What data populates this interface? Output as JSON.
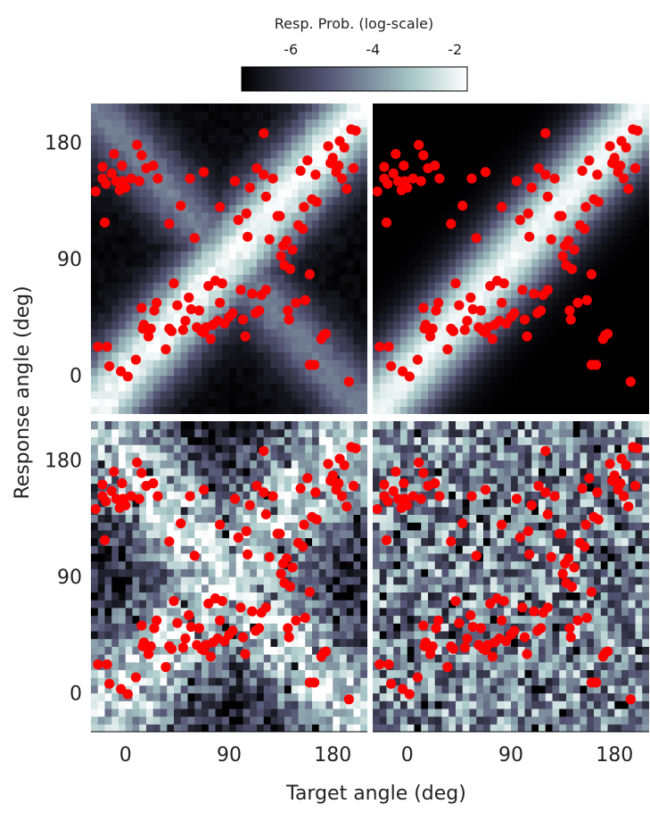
{
  "chart_data": {
    "type": "heatmap",
    "layout": "2x2 grid of heatmap panels with scatter overlay",
    "colormap": "bone (black to white)",
    "overlay_color": "#ff0000",
    "colorbar": {
      "title": "Resp. Prob. (log-scale)",
      "ticks": [
        -6,
        -4,
        -2
      ],
      "tick_labels": [
        "-6",
        "-4",
        "-2"
      ],
      "range": [
        -7.2,
        -1.7
      ],
      "scale": "log"
    },
    "xlabel": "Target angle (deg)",
    "ylabel": "Response angle (deg)",
    "xlim": [
      -30,
      210
    ],
    "ylim": [
      -30,
      210
    ],
    "xticks": [
      0,
      90,
      180
    ],
    "yticks": [
      0,
      90,
      180
    ],
    "xtick_labels": [
      "0",
      "90",
      "180"
    ],
    "ytick_labels": [
      "0",
      "90",
      "180"
    ],
    "heatmap_bins": 40,
    "panels": [
      {
        "position": "top-left",
        "background_model": "diagonal band plus weaker anti-diagonal band (smooth)"
      },
      {
        "position": "top-right",
        "background_model": "diagonal band only (smooth)"
      },
      {
        "position": "bottom-left",
        "background_model": "diagonal and anti-diagonal bands (noisy)"
      },
      {
        "position": "bottom-right",
        "background_model": "near-uniform (noisy)"
      }
    ],
    "points": [
      [
        -26,
        142
      ],
      [
        -24,
        22
      ],
      [
        -20,
        161
      ],
      [
        -20,
        152
      ],
      [
        -18,
        118
      ],
      [
        -17,
        148
      ],
      [
        -16,
        22
      ],
      [
        -14,
        7
      ],
      [
        -12,
        156
      ],
      [
        -10,
        171
      ],
      [
        -8,
        150
      ],
      [
        -5,
        143
      ],
      [
        -4,
        3
      ],
      [
        -3,
        162
      ],
      [
        -2,
        150
      ],
      [
        0,
        145
      ],
      [
        2,
        -1
      ],
      [
        5,
        152
      ],
      [
        9,
        12
      ],
      [
        10,
        178
      ],
      [
        12,
        150
      ],
      [
        14,
        52
      ],
      [
        14,
        170
      ],
      [
        15,
        36
      ],
      [
        16,
        39
      ],
      [
        18,
        160
      ],
      [
        20,
        30
      ],
      [
        22,
        36
      ],
      [
        24,
        162
      ],
      [
        25,
        50
      ],
      [
        27,
        56
      ],
      [
        28,
        152
      ],
      [
        35,
        20
      ],
      [
        38,
        117
      ],
      [
        38,
        36
      ],
      [
        40,
        34
      ],
      [
        42,
        71
      ],
      [
        45,
        54
      ],
      [
        48,
        131
      ],
      [
        50,
        35
      ],
      [
        52,
        42
      ],
      [
        55,
        60
      ],
      [
        56,
        152
      ],
      [
        57,
        51
      ],
      [
        60,
        106
      ],
      [
        62,
        37
      ],
      [
        64,
        50
      ],
      [
        66,
        34
      ],
      [
        68,
        33
      ],
      [
        68,
        157
      ],
      [
        70,
        37
      ],
      [
        72,
        69
      ],
      [
        74,
        28
      ],
      [
        76,
        39
      ],
      [
        78,
        73
      ],
      [
        80,
        42
      ],
      [
        82,
        130
      ],
      [
        82,
        56
      ],
      [
        84,
        71
      ],
      [
        86,
        40
      ],
      [
        90,
        45
      ],
      [
        93,
        48
      ],
      [
        95,
        150
      ],
      [
        98,
        120
      ],
      [
        100,
        66
      ],
      [
        102,
        43
      ],
      [
        104,
        30
      ],
      [
        105,
        125
      ],
      [
        106,
        107
      ],
      [
        108,
        145
      ],
      [
        110,
        63
      ],
      [
        113,
        48
      ],
      [
        114,
        160
      ],
      [
        116,
        50
      ],
      [
        118,
        62
      ],
      [
        120,
        155
      ],
      [
        120,
        187
      ],
      [
        122,
        138
      ],
      [
        122,
        66
      ],
      [
        125,
        105
      ],
      [
        128,
        152
      ],
      [
        132,
        123
      ],
      [
        134,
        123
      ],
      [
        135,
        92
      ],
      [
        137,
        100
      ],
      [
        138,
        85
      ],
      [
        140,
        104
      ],
      [
        141,
        50
      ],
      [
        142,
        43
      ],
      [
        143,
        82
      ],
      [
        145,
        97
      ],
      [
        148,
        56
      ],
      [
        150,
        116
      ],
      [
        152,
        158
      ],
      [
        154,
        113
      ],
      [
        155,
        130
      ],
      [
        156,
        58
      ],
      [
        158,
        166
      ],
      [
        160,
        78
      ],
      [
        160,
        8
      ],
      [
        162,
        136
      ],
      [
        164,
        8
      ],
      [
        165,
        155
      ],
      [
        166,
        134
      ],
      [
        170,
        28
      ],
      [
        172,
        31
      ],
      [
        174,
        32
      ],
      [
        176,
        177
      ],
      [
        178,
        164
      ],
      [
        180,
        168
      ],
      [
        181,
        163
      ],
      [
        183,
        157
      ],
      [
        185,
        162
      ],
      [
        186,
        181
      ],
      [
        188,
        152
      ],
      [
        190,
        176
      ],
      [
        192,
        144
      ],
      [
        194,
        -5
      ],
      [
        196,
        190
      ],
      [
        198,
        160
      ],
      [
        200,
        189
      ]
    ]
  }
}
